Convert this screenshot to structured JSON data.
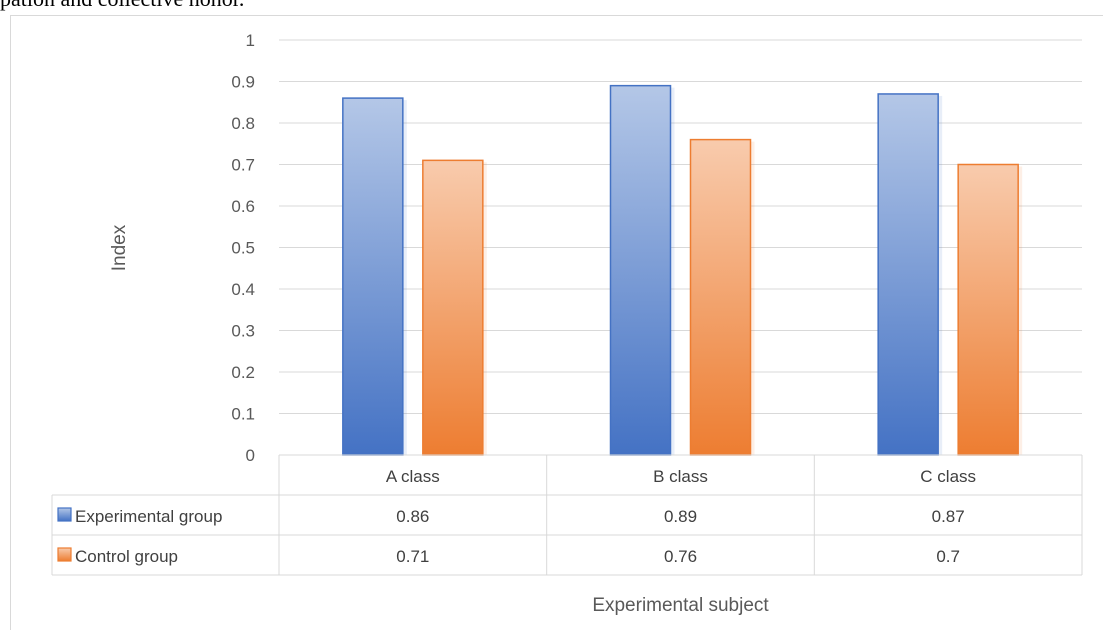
{
  "top_text": "pation and collective honor.",
  "chart_data": {
    "type": "bar",
    "title": "",
    "xlabel": "Experimental subject",
    "ylabel": "Index",
    "ylim": [
      0,
      1
    ],
    "yticks": [
      "0",
      "0.1",
      "0.2",
      "0.3",
      "0.4",
      "0.5",
      "0.6",
      "0.7",
      "0.8",
      "0.9",
      "1"
    ],
    "categories": [
      "A class",
      "B class",
      "C class"
    ],
    "grid": true,
    "legend": "data-table",
    "series": [
      {
        "name": "Experimental group",
        "values": [
          0.86,
          0.89,
          0.87
        ],
        "labels": [
          "0.86",
          "0.89",
          "0.87"
        ],
        "color": "#4472c4",
        "color_light": "#b4c7e7"
      },
      {
        "name": "Control group",
        "values": [
          0.71,
          0.76,
          0.7
        ],
        "labels": [
          "0.71",
          "0.76",
          "0.7"
        ],
        "color": "#ed7d31",
        "color_light": "#f8cbad"
      }
    ]
  }
}
